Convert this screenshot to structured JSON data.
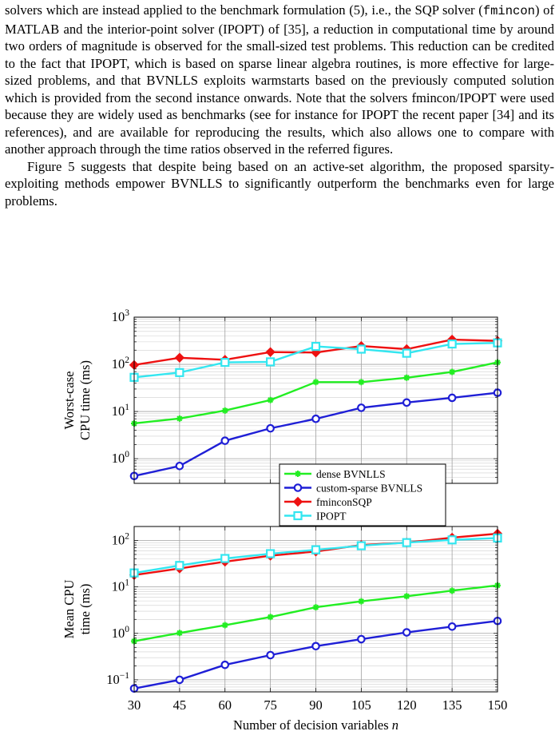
{
  "text": {
    "para1": {
      "a": "solvers which are instead applied to the benchmark formulation (5), i.e., the SQP solver (",
      "code": "fmincon",
      "b": ") of MATLAB and the interior-point solver (IPOPT) of [35], a reduction in computational time by around two orders of magnitude is observed for the small-sized test problems. This reduction can be credited to the fact that IPOPT, which is based on sparse linear algebra routines, is more effective for large-sized problems, and that BVNLLS exploits warmstarts based on the previously computed solution which is provided from the second instance onwards. Note that the solvers fmincon/IPOPT were used because they are widely used as benchmarks (see for instance for IPOPT the recent paper [34] and its references), and are available for reproducing the results, which also allows one to compare with another approach through the time ratios observed in the referred figures."
    },
    "para2": "Figure 5 suggests that despite being based on an active-set algorithm, the proposed sparsity-exploiting methods empower BVNLLS to significantly outperform the benchmarks even for large problems."
  },
  "chart_data": [
    {
      "type": "line",
      "yscale": "log",
      "ylabel": [
        "Worst-case",
        "CPU time (ms)"
      ],
      "xlabel": "",
      "ylim": [
        0.3,
        1000
      ],
      "yticks": [
        {
          "v": 1,
          "base": "10",
          "exp": "0"
        },
        {
          "v": 10,
          "base": "10",
          "exp": "1"
        },
        {
          "v": 100,
          "base": "10",
          "exp": "2"
        },
        {
          "v": 1000,
          "base": "10",
          "exp": "3"
        }
      ],
      "x": [
        30,
        45,
        60,
        75,
        90,
        105,
        120,
        135,
        150
      ],
      "xticks_shown": false,
      "grid": true,
      "legend": "bottom-right",
      "series": [
        {
          "name": "dense BVNLLS",
          "color": "#22ee22",
          "marker": "star",
          "values": [
            5.6,
            7.1,
            10.5,
            17.5,
            42,
            42,
            52,
            69,
            110
          ]
        },
        {
          "name": "custom-sparse BVNLLS",
          "color": "#1f1fd6",
          "marker": "circle",
          "values": [
            0.43,
            0.7,
            2.4,
            4.4,
            7,
            12,
            15.5,
            19.5,
            25
          ]
        },
        {
          "name": "fminconSQP",
          "color": "#ee1111",
          "marker": "diamond",
          "values": [
            97,
            138,
            125,
            182,
            178,
            245,
            210,
            335,
            315
          ]
        },
        {
          "name": "IPOPT",
          "color": "#33e6f0",
          "marker": "square",
          "values": [
            53,
            67,
            110,
            113,
            240,
            210,
            172,
            270,
            285
          ]
        }
      ]
    },
    {
      "type": "line",
      "yscale": "log",
      "ylabel": [
        "Mean CPU",
        "time (ms)"
      ],
      "xlabel": "Number of decision variables ",
      "xlabel_var": "n",
      "ylim": [
        0.055,
        200
      ],
      "yticks": [
        {
          "v": 0.1,
          "base": "10",
          "exp": "−1"
        },
        {
          "v": 1,
          "base": "10",
          "exp": "0"
        },
        {
          "v": 10,
          "base": "10",
          "exp": "1"
        },
        {
          "v": 100,
          "base": "10",
          "exp": "2"
        }
      ],
      "x": [
        30,
        45,
        60,
        75,
        90,
        105,
        120,
        135,
        150
      ],
      "xticks_shown": true,
      "grid": true,
      "series": [
        {
          "name": "dense BVNLLS",
          "color": "#22ee22",
          "marker": "star",
          "values": [
            0.68,
            1.02,
            1.5,
            2.25,
            3.65,
            4.9,
            6.3,
            8.3,
            10.8
          ]
        },
        {
          "name": "custom-sparse BVNLLS",
          "color": "#1f1fd6",
          "marker": "circle",
          "values": [
            0.065,
            0.1,
            0.21,
            0.34,
            0.53,
            0.75,
            1.05,
            1.4,
            1.85
          ]
        },
        {
          "name": "fminconSQP",
          "color": "#ee1111",
          "marker": "diamond",
          "values": [
            18,
            25,
            35,
            47,
            58,
            80,
            90,
            115,
            140
          ]
        },
        {
          "name": "IPOPT",
          "color": "#33e6f0",
          "marker": "square",
          "values": [
            20,
            29,
            41,
            52,
            63,
            77,
            90,
            103,
            113
          ]
        }
      ]
    }
  ]
}
